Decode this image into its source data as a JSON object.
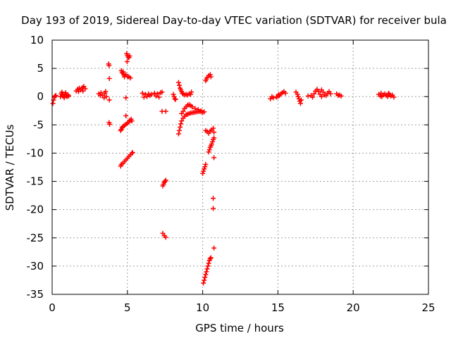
{
  "chart_data": {
    "type": "scatter",
    "title": "Day 193 of 2019, Sidereal Day-to-day VTEC variation (SDTVAR) for receiver bula",
    "xlabel": "GPS time / hours",
    "ylabel": "SDTVAR / TECUs",
    "xlim": [
      0,
      25
    ],
    "ylim": [
      -35,
      10
    ],
    "xticks": [
      0,
      5,
      10,
      15,
      20,
      25
    ],
    "xtick_labels": [
      "0",
      "5",
      "10",
      "15",
      "20",
      "25"
    ],
    "yticks": [
      10,
      5,
      0,
      -5,
      -10,
      -15,
      -20,
      -25,
      -30,
      -35
    ],
    "ytick_labels": [
      "10",
      "5",
      "0",
      "-5",
      "-10",
      "-15",
      "-20",
      "-25",
      "-30",
      "-35"
    ],
    "grid": true,
    "marker": "+",
    "color": "#ff0000",
    "series": [
      {
        "name": "SDTVAR",
        "points": [
          [
            0.05,
            -1.2
          ],
          [
            0.1,
            -0.6
          ],
          [
            0.15,
            -0.1
          ],
          [
            0.2,
            0.1
          ],
          [
            0.25,
            0.2
          ],
          [
            0.55,
            0.0
          ],
          [
            0.6,
            0.5
          ],
          [
            0.65,
            0.8
          ],
          [
            0.7,
            0.3
          ],
          [
            0.75,
            0.1
          ],
          [
            0.8,
            -0.2
          ],
          [
            0.85,
            0.4
          ],
          [
            0.9,
            0.7
          ],
          [
            0.95,
            0.2
          ],
          [
            1.0,
            0.0
          ],
          [
            1.05,
            0.3
          ],
          [
            1.1,
            0.1
          ],
          [
            1.6,
            1.0
          ],
          [
            1.7,
            1.3
          ],
          [
            1.8,
            1.5
          ],
          [
            1.9,
            1.2
          ],
          [
            2.0,
            1.6
          ],
          [
            2.1,
            1.8
          ],
          [
            2.2,
            1.4
          ],
          [
            1.75,
            0.9
          ],
          [
            2.05,
            1.0
          ],
          [
            3.1,
            0.5
          ],
          [
            3.2,
            0.2
          ],
          [
            3.25,
            0.7
          ],
          [
            3.35,
            0.3
          ],
          [
            3.45,
            -0.2
          ],
          [
            3.5,
            0.6
          ],
          [
            3.55,
            0.9
          ],
          [
            3.6,
            0.0
          ],
          [
            3.75,
            5.8
          ],
          [
            3.78,
            5.5
          ],
          [
            3.8,
            3.2
          ],
          [
            3.8,
            -0.6
          ],
          [
            3.78,
            -4.6
          ],
          [
            3.82,
            -4.9
          ],
          [
            4.6,
            4.6
          ],
          [
            4.65,
            4.2
          ],
          [
            4.7,
            4.4
          ],
          [
            4.75,
            4.0
          ],
          [
            4.78,
            3.8
          ],
          [
            4.8,
            3.5
          ],
          [
            4.9,
            3.9
          ],
          [
            5.0,
            3.6
          ],
          [
            5.1,
            3.5
          ],
          [
            5.2,
            3.3
          ],
          [
            4.95,
            7.6
          ],
          [
            5.0,
            7.3
          ],
          [
            5.05,
            7.0
          ],
          [
            5.1,
            6.9
          ],
          [
            5.15,
            7.2
          ],
          [
            4.98,
            6.2
          ],
          [
            4.9,
            -0.2
          ],
          [
            4.9,
            -3.4
          ],
          [
            4.55,
            -6.0
          ],
          [
            4.6,
            -5.8
          ],
          [
            4.65,
            -5.5
          ],
          [
            4.7,
            -5.3
          ],
          [
            4.8,
            -5.1
          ],
          [
            4.9,
            -4.9
          ],
          [
            5.0,
            -4.7
          ],
          [
            5.1,
            -4.5
          ],
          [
            5.15,
            -4.2
          ],
          [
            5.25,
            -4.0
          ],
          [
            5.3,
            -4.3
          ],
          [
            4.55,
            -12.3
          ],
          [
            4.6,
            -12.0
          ],
          [
            4.7,
            -11.8
          ],
          [
            4.8,
            -11.5
          ],
          [
            4.9,
            -11.2
          ],
          [
            5.0,
            -10.9
          ],
          [
            5.1,
            -10.6
          ],
          [
            5.2,
            -10.3
          ],
          [
            5.3,
            -10.0
          ],
          [
            5.35,
            -9.9
          ],
          [
            6.0,
            0.6
          ],
          [
            6.2,
            0.4
          ],
          [
            6.4,
            0.5
          ],
          [
            6.5,
            0.2
          ],
          [
            6.6,
            0.4
          ],
          [
            6.8,
            0.6
          ],
          [
            7.0,
            0.5
          ],
          [
            7.2,
            0.7
          ],
          [
            7.3,
            0.8
          ],
          [
            6.3,
            0.0
          ],
          [
            6.9,
            0.1
          ],
          [
            7.1,
            -0.1
          ],
          [
            6.1,
            -0.1
          ],
          [
            7.3,
            -2.6
          ],
          [
            7.55,
            -2.6
          ],
          [
            7.35,
            -15.8
          ],
          [
            7.4,
            -15.5
          ],
          [
            7.45,
            -15.2
          ],
          [
            7.5,
            -15.0
          ],
          [
            7.55,
            -14.8
          ],
          [
            7.35,
            -24.2
          ],
          [
            7.45,
            -24.6
          ],
          [
            7.55,
            -24.9
          ],
          [
            8.4,
            2.5
          ],
          [
            8.45,
            2.0
          ],
          [
            8.5,
            1.5
          ],
          [
            8.55,
            1.2
          ],
          [
            8.6,
            0.9
          ],
          [
            8.65,
            0.6
          ],
          [
            8.7,
            0.5
          ],
          [
            8.8,
            0.3
          ],
          [
            8.9,
            0.4
          ],
          [
            9.0,
            0.3
          ],
          [
            9.1,
            0.5
          ],
          [
            9.2,
            0.4
          ],
          [
            9.25,
            0.8
          ],
          [
            8.05,
            0.4
          ],
          [
            8.1,
            0.0
          ],
          [
            8.15,
            -0.4
          ],
          [
            8.2,
            -0.5
          ],
          [
            8.4,
            -6.6
          ],
          [
            8.45,
            -6.0
          ],
          [
            8.5,
            -5.4
          ],
          [
            8.55,
            -4.8
          ],
          [
            8.6,
            -4.3
          ],
          [
            8.7,
            -3.8
          ],
          [
            8.8,
            -3.5
          ],
          [
            8.9,
            -3.2
          ],
          [
            9.0,
            -3.1
          ],
          [
            9.1,
            -3.0
          ],
          [
            9.2,
            -2.9
          ],
          [
            9.3,
            -2.85
          ],
          [
            9.4,
            -2.8
          ],
          [
            9.5,
            -2.75
          ],
          [
            9.6,
            -2.7
          ],
          [
            9.7,
            -2.65
          ],
          [
            9.8,
            -2.6
          ],
          [
            9.9,
            -2.7
          ],
          [
            10.0,
            -2.8
          ],
          [
            10.1,
            -2.7
          ],
          [
            8.6,
            -3.0
          ],
          [
            8.7,
            -2.6
          ],
          [
            8.8,
            -2.1
          ],
          [
            8.9,
            -1.8
          ],
          [
            9.0,
            -1.5
          ],
          [
            9.1,
            -1.4
          ],
          [
            9.2,
            -1.6
          ],
          [
            9.3,
            -1.8
          ],
          [
            9.5,
            -2.1
          ],
          [
            9.7,
            -2.3
          ],
          [
            9.9,
            -2.5
          ],
          [
            10.2,
            2.8
          ],
          [
            10.25,
            3.1
          ],
          [
            10.3,
            3.4
          ],
          [
            10.4,
            3.7
          ],
          [
            10.5,
            3.9
          ],
          [
            10.55,
            3.5
          ],
          [
            10.2,
            -6.0
          ],
          [
            10.3,
            -6.2
          ],
          [
            10.4,
            -6.5
          ],
          [
            10.5,
            -6.1
          ],
          [
            10.6,
            -5.9
          ],
          [
            10.7,
            -5.6
          ],
          [
            10.75,
            -6.3
          ],
          [
            10.4,
            -9.8
          ],
          [
            10.45,
            -9.4
          ],
          [
            10.5,
            -9.0
          ],
          [
            10.55,
            -8.7
          ],
          [
            10.6,
            -8.4
          ],
          [
            10.65,
            -8.0
          ],
          [
            10.7,
            -7.6
          ],
          [
            10.75,
            -7.3
          ],
          [
            10.0,
            -13.6
          ],
          [
            10.05,
            -13.2
          ],
          [
            10.1,
            -12.8
          ],
          [
            10.15,
            -12.4
          ],
          [
            10.2,
            -12.0
          ],
          [
            10.75,
            -10.8
          ],
          [
            10.7,
            -18.0
          ],
          [
            10.7,
            -19.8
          ],
          [
            10.75,
            -26.8
          ],
          [
            10.05,
            -33.0
          ],
          [
            10.1,
            -32.5
          ],
          [
            10.15,
            -32.0
          ],
          [
            10.2,
            -31.5
          ],
          [
            10.25,
            -31.0
          ],
          [
            10.3,
            -30.5
          ],
          [
            10.35,
            -30.0
          ],
          [
            10.4,
            -29.5
          ],
          [
            10.45,
            -29.0
          ],
          [
            10.5,
            -28.7
          ],
          [
            10.55,
            -28.5
          ],
          [
            14.5,
            -0.4
          ],
          [
            14.7,
            -0.2
          ],
          [
            14.9,
            -0.1
          ],
          [
            15.0,
            0.0
          ],
          [
            15.1,
            0.2
          ],
          [
            15.2,
            0.5
          ],
          [
            15.3,
            0.7
          ],
          [
            15.4,
            0.9
          ],
          [
            15.5,
            0.6
          ],
          [
            14.6,
            0.0
          ],
          [
            15.05,
            0.4
          ],
          [
            16.2,
            0.8
          ],
          [
            16.3,
            0.4
          ],
          [
            16.35,
            0.0
          ],
          [
            16.4,
            -0.4
          ],
          [
            16.45,
            -0.8
          ],
          [
            16.5,
            -1.2
          ],
          [
            16.55,
            -0.6
          ],
          [
            17.0,
            0.1
          ],
          [
            17.2,
            0.2
          ],
          [
            17.4,
            0.5
          ],
          [
            17.5,
            1.0
          ],
          [
            17.6,
            1.3
          ],
          [
            17.7,
            0.9
          ],
          [
            17.8,
            0.4
          ],
          [
            17.9,
            1.2
          ],
          [
            18.0,
            0.8
          ],
          [
            18.1,
            0.3
          ],
          [
            18.2,
            0.2
          ],
          [
            18.3,
            0.6
          ],
          [
            18.4,
            0.9
          ],
          [
            18.5,
            0.5
          ],
          [
            17.3,
            -0.1
          ],
          [
            17.9,
            0.0
          ],
          [
            18.9,
            0.5
          ],
          [
            19.0,
            0.2
          ],
          [
            19.1,
            0.3
          ],
          [
            19.2,
            0.1
          ],
          [
            21.7,
            0.4
          ],
          [
            21.8,
            0.1
          ],
          [
            21.9,
            0.0
          ],
          [
            22.0,
            0.3
          ],
          [
            22.1,
            0.5
          ],
          [
            22.2,
            0.2
          ],
          [
            22.3,
            0.0
          ],
          [
            22.4,
            0.4
          ],
          [
            22.5,
            0.1
          ],
          [
            22.6,
            0.3
          ],
          [
            22.7,
            -0.1
          ],
          [
            21.85,
            0.6
          ],
          [
            22.35,
            0.6
          ]
        ]
      }
    ]
  }
}
